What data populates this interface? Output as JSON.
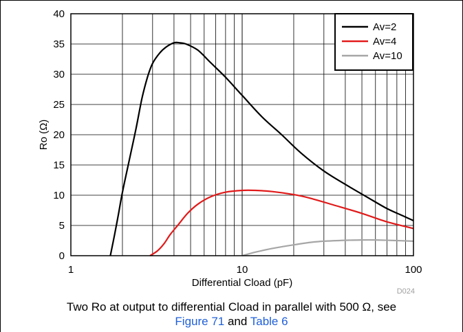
{
  "chart_data": {
    "type": "line",
    "xscale": "log",
    "xlim": [
      1,
      100
    ],
    "ylim": [
      0,
      40
    ],
    "grid": true,
    "xlabel": "Differential Cload (pF)",
    "ylabel": "Ro (Ω)",
    "x_ticks": [
      1,
      10,
      100
    ],
    "x_tick_labels": [
      "1",
      "10",
      "100"
    ],
    "y_ticks": [
      0,
      5,
      10,
      15,
      20,
      25,
      30,
      35,
      40
    ],
    "y_tick_labels": [
      "0",
      "5",
      "10",
      "15",
      "20",
      "25",
      "30",
      "35",
      "40"
    ],
    "legend_position": "top-right",
    "series": [
      {
        "name": "Av=2",
        "color": "#000000",
        "x": [
          1.7,
          1.8,
          1.9,
          2.0,
          2.2,
          2.4,
          2.6,
          2.8,
          3.0,
          3.3,
          3.6,
          4.0,
          4.3,
          4.7,
          5.5,
          6.5,
          8,
          10,
          13,
          17,
          22,
          30,
          40,
          55,
          70,
          85,
          100
        ],
        "y": [
          0,
          3.5,
          7,
          10.5,
          16,
          21,
          26,
          29.5,
          31.8,
          33.5,
          34.5,
          35.2,
          35.2,
          35,
          34,
          32,
          29.5,
          26.5,
          23,
          20,
          17,
          14,
          11.8,
          9.5,
          7.8,
          6.7,
          5.8
        ]
      },
      {
        "name": "Av=4",
        "color": "#e11a1a",
        "x": [
          2.9,
          3.2,
          3.5,
          3.8,
          4.2,
          4.8,
          5.5,
          6.5,
          8,
          10,
          12,
          15,
          20,
          25,
          35,
          50,
          70,
          100
        ],
        "y": [
          0,
          0.8,
          2,
          3.5,
          5,
          7,
          8.5,
          9.7,
          10.5,
          10.8,
          10.8,
          10.6,
          10.1,
          9.5,
          8.3,
          7,
          5.6,
          4.5
        ]
      },
      {
        "name": "Av=10",
        "color": "#a6a6a6",
        "x": [
          10,
          12,
          15,
          20,
          25,
          30,
          40,
          50,
          60,
          80,
          100
        ],
        "y": [
          0,
          0.6,
          1.2,
          1.8,
          2.2,
          2.4,
          2.55,
          2.6,
          2.6,
          2.5,
          2.4
        ]
      }
    ],
    "watermark": "D024"
  },
  "caption": {
    "line1": "Two Ro at output to differential Cload in parallel with 500 Ω, see",
    "link1": "Figure 71",
    "and": " and ",
    "link2": "Table 6"
  }
}
